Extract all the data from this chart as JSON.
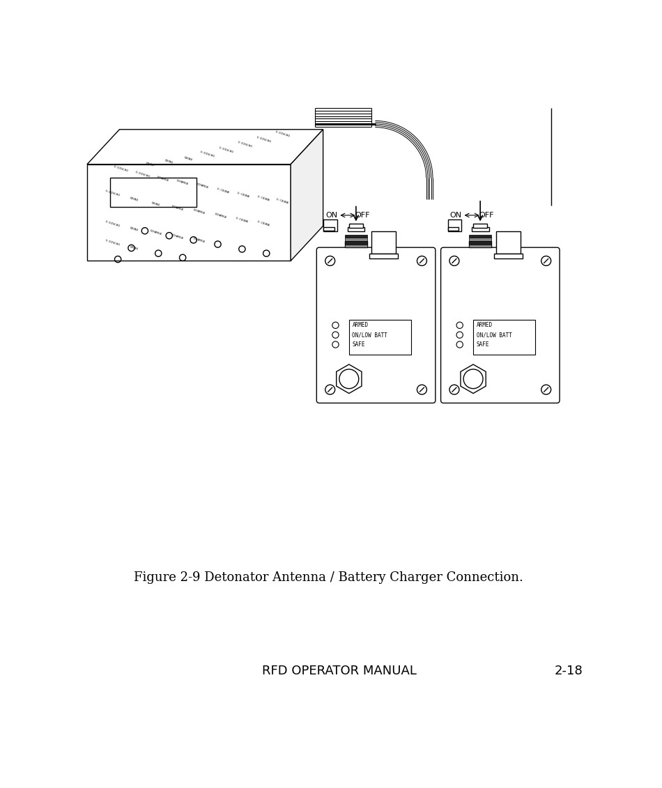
{
  "caption": "Figure 2-9 Detonator Antenna / Battery Charger Connection.",
  "footer_left": "RFD OPERATOR MANUAL",
  "footer_right": "2-18",
  "bg_color": "#ffffff",
  "line_color": "#000000",
  "lw": 1.0,
  "caption_fontsize": 13,
  "footer_fontsize": 13,
  "led_labels": [
    "ARMED",
    "ON/LOW BATT",
    "SAFE"
  ]
}
